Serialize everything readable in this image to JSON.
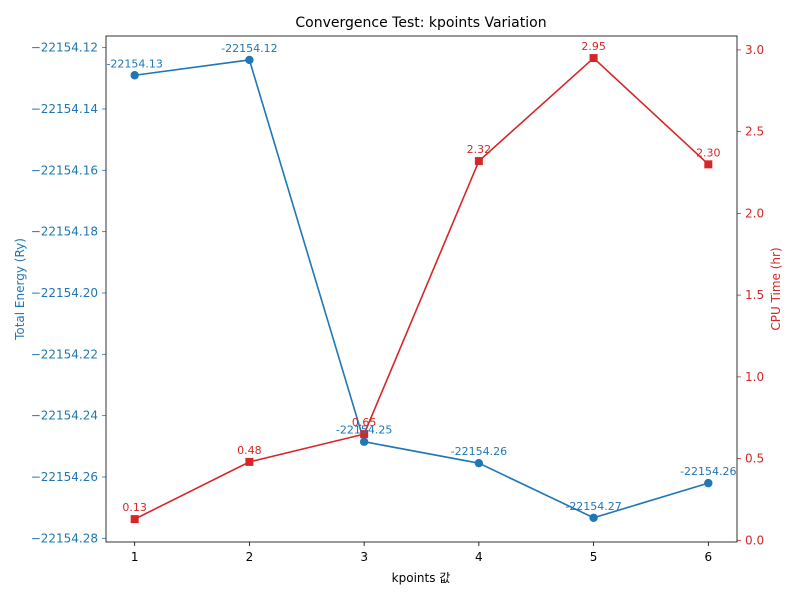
{
  "chart_data": {
    "type": "line",
    "title": "Convergence Test: kpoints Variation",
    "xlabel": "kpoints 값",
    "x": [
      1,
      2,
      3,
      4,
      5,
      6
    ],
    "xlim": [
      0.75,
      6.25
    ],
    "grid": false,
    "legend": "none",
    "y_left": {
      "label": "Total Energy (Ry)",
      "color": "#1f77b4",
      "ylim": [
        -22154.2812,
        -22154.1162
      ],
      "ticks": [
        -22154.12,
        -22154.14,
        -22154.16,
        -22154.18,
        -22154.2,
        -22154.22,
        -22154.24,
        -22154.26,
        -22154.28
      ],
      "tick_labels": [
        "−22154.12",
        "−22154.14",
        "−22154.16",
        "−22154.18",
        "−22154.20",
        "−22154.22",
        "−22154.24",
        "−22154.26",
        "−22154.28"
      ]
    },
    "y_right": {
      "label": "CPU Time (hr)",
      "color": "#d62728",
      "ylim": [
        -0.01,
        3.085
      ],
      "ticks": [
        0.0,
        0.5,
        1.0,
        1.5,
        2.0,
        2.5,
        3.0
      ],
      "tick_labels": [
        "0.0",
        "0.5",
        "1.0",
        "1.5",
        "2.0",
        "2.5",
        "3.0"
      ]
    },
    "series": [
      {
        "axis": "left",
        "marker": "circle",
        "color": "#1f77b4",
        "values": [
          -22154.129,
          -22154.124,
          -22154.2485,
          -22154.2555,
          -22154.2733,
          -22154.262
        ],
        "labels": [
          "-22154.13",
          "-22154.12",
          "-22154.25",
          "-22154.26",
          "-22154.27",
          "-22154.26"
        ]
      },
      {
        "axis": "right",
        "marker": "square",
        "color": "#d62728",
        "values": [
          0.13,
          0.48,
          0.65,
          2.32,
          2.95,
          2.3
        ],
        "labels": [
          "0.13",
          "0.48",
          "0.65",
          "2.32",
          "2.95",
          "2.30"
        ]
      }
    ]
  }
}
